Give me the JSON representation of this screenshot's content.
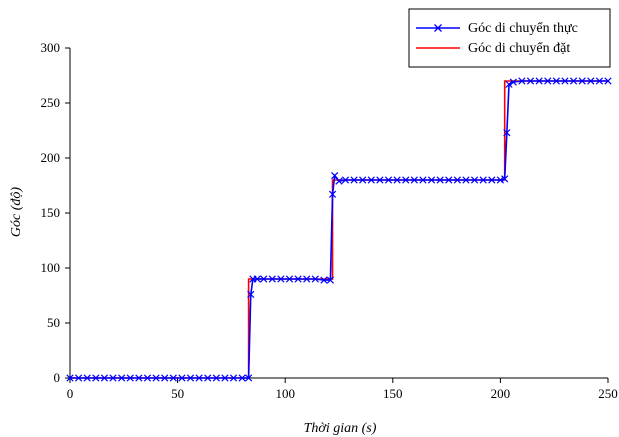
{
  "chart_data": {
    "type": "line",
    "title": "",
    "xlabel": "Thời gian (s)",
    "ylabel": "Góc (độ)",
    "xlim": [
      0,
      250
    ],
    "ylim": [
      0,
      300
    ],
    "xticks": [
      "0",
      "50",
      "100",
      "150",
      "200",
      "250"
    ],
    "yticks": [
      "0",
      "50",
      "100",
      "150",
      "200",
      "250",
      "300"
    ],
    "grid": false,
    "legend_position": "top-right",
    "series": [
      {
        "name": "Góc di chuyển thực",
        "color": "#0000ff",
        "marker": "x",
        "x": [
          0,
          4,
          8,
          12,
          16,
          20,
          24,
          28,
          32,
          36,
          40,
          44,
          48,
          52,
          56,
          60,
          64,
          68,
          72,
          76,
          80,
          83,
          84,
          85,
          87,
          90,
          94,
          98,
          102,
          106,
          110,
          114,
          118,
          121,
          122,
          123,
          125,
          128,
          132,
          136,
          140,
          144,
          148,
          152,
          156,
          160,
          164,
          168,
          172,
          176,
          180,
          184,
          188,
          192,
          196,
          200,
          202,
          203,
          204,
          206,
          210,
          214,
          218,
          222,
          226,
          230,
          234,
          238,
          242,
          246,
          250
        ],
        "y": [
          0,
          0,
          0,
          0,
          0,
          0,
          0,
          0,
          0,
          0,
          0,
          0,
          0,
          0,
          0,
          0,
          0,
          0,
          0,
          0,
          0,
          0,
          76,
          90,
          90,
          90,
          90,
          90,
          90,
          90,
          90,
          90,
          89,
          89,
          167,
          184,
          179,
          180,
          180,
          180,
          180,
          180,
          180,
          180,
          180,
          180,
          180,
          180,
          180,
          180,
          180,
          180,
          180,
          180,
          180,
          180,
          181,
          223,
          267,
          269,
          270,
          270,
          270,
          270,
          270,
          270,
          270,
          270,
          270,
          270,
          270
        ]
      },
      {
        "name": "Góc di chuyển đặt",
        "color": "#ff0000",
        "marker": "none",
        "x": [
          0,
          83,
          83,
          122,
          122,
          202,
          202,
          250
        ],
        "y": [
          0,
          0,
          90,
          90,
          180,
          180,
          270,
          270
        ]
      }
    ]
  }
}
